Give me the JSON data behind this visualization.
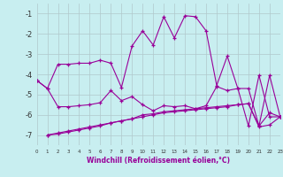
{
  "xlabel": "Windchill (Refroidissement éolien,°C)",
  "background_color": "#c8eef0",
  "grid_color": "#b0c8cc",
  "line_color": "#990099",
  "xlim": [
    0,
    23
  ],
  "ylim": [
    -7.5,
    -0.5
  ],
  "yticks": [
    -7,
    -6,
    -5,
    -4,
    -3,
    -2,
    -1
  ],
  "xticks": [
    0,
    1,
    2,
    3,
    4,
    5,
    6,
    7,
    8,
    9,
    10,
    11,
    12,
    13,
    14,
    15,
    16,
    17,
    18,
    19,
    20,
    21,
    22,
    23
  ],
  "line1_x": [
    0,
    1,
    2,
    3,
    4,
    5,
    6,
    7,
    8,
    9,
    10,
    11,
    12,
    13,
    14,
    15,
    16,
    17,
    18,
    19,
    20,
    21,
    22,
    23
  ],
  "line1_y": [
    -4.3,
    -4.7,
    -5.6,
    -5.6,
    -5.55,
    -5.5,
    -5.4,
    -4.8,
    -5.3,
    -5.1,
    -5.5,
    -5.8,
    -5.55,
    -5.6,
    -5.55,
    -5.7,
    -5.55,
    -4.6,
    -4.8,
    -4.7,
    -4.7,
    -6.55,
    -4.05,
    -6.1
  ],
  "line2_x": [
    0,
    1,
    2,
    3,
    4,
    5,
    6,
    7,
    8,
    9,
    10,
    11,
    12,
    13,
    14,
    15,
    16,
    17,
    18,
    19,
    20,
    21,
    22,
    23
  ],
  "line2_y": [
    -4.3,
    -4.7,
    -3.5,
    -3.5,
    -3.45,
    -3.45,
    -3.3,
    -3.45,
    -4.65,
    -2.6,
    -1.85,
    -2.55,
    -1.15,
    -2.2,
    -1.1,
    -1.15,
    -1.85,
    -4.55,
    -3.1,
    -4.7,
    -6.55,
    -4.05,
    -6.1,
    -6.1
  ],
  "line3_x": [
    1,
    2,
    3,
    4,
    5,
    6,
    7,
    8,
    9,
    10,
    11,
    12,
    13,
    14,
    15,
    16,
    17,
    18,
    19,
    20,
    21,
    22,
    23
  ],
  "line3_y": [
    -7.0,
    -6.9,
    -6.8,
    -6.7,
    -6.6,
    -6.5,
    -6.4,
    -6.3,
    -6.2,
    -6.0,
    -5.95,
    -5.85,
    -5.8,
    -5.75,
    -5.7,
    -5.65,
    -5.6,
    -5.55,
    -5.5,
    -5.45,
    -6.55,
    -5.9,
    -6.1
  ],
  "line4_x": [
    1,
    2,
    3,
    4,
    5,
    6,
    7,
    8,
    9,
    10,
    11,
    12,
    13,
    14,
    15,
    16,
    17,
    18,
    19,
    20,
    21,
    22,
    23
  ],
  "line4_y": [
    -7.0,
    -6.95,
    -6.85,
    -6.75,
    -6.65,
    -6.55,
    -6.4,
    -6.3,
    -6.2,
    -6.1,
    -6.0,
    -5.9,
    -5.85,
    -5.8,
    -5.75,
    -5.7,
    -5.65,
    -5.6,
    -5.5,
    -5.45,
    -6.6,
    -6.5,
    -6.1
  ]
}
